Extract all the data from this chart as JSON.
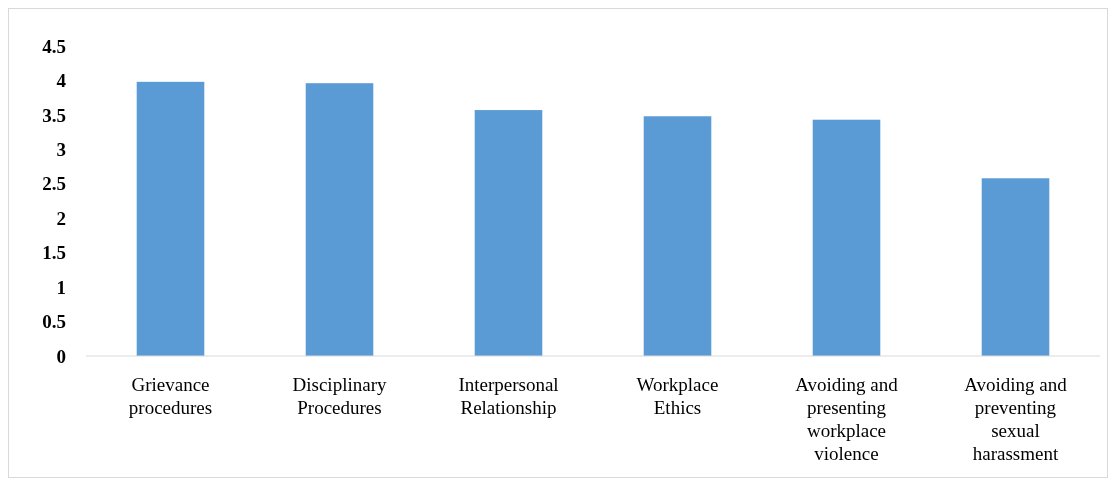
{
  "chart_data": {
    "type": "bar",
    "categories": [
      "Grievance procedures",
      "Disciplinary Procedures",
      "Interpersonal Relationship",
      "Workplace Ethics",
      "Avoiding and presenting workplace violence",
      "Avoiding and preventing sexual harassment"
    ],
    "values": [
      3.98,
      3.96,
      3.57,
      3.48,
      3.43,
      2.58
    ],
    "color": "#5b9bd5",
    "ylim": [
      0,
      4.5
    ],
    "yticks": [
      0,
      0.5,
      1,
      1.5,
      2,
      2.5,
      3,
      3.5,
      4,
      4.5
    ],
    "grid": false
  }
}
